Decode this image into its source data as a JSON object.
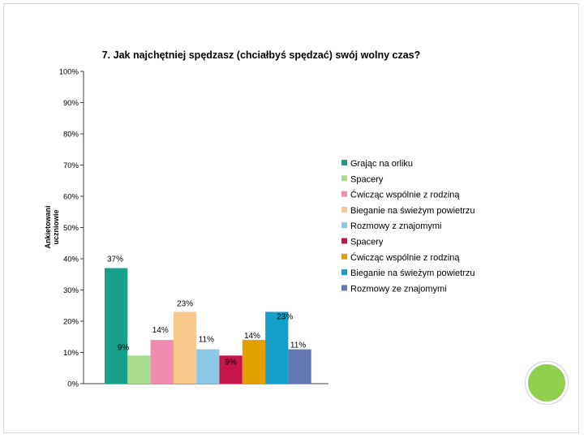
{
  "chart_data": {
    "type": "bar",
    "title": "7. Jak najchętniej spędzasz (chciałbyś spędzać) swój wolny czas?",
    "ylabel": "Ankietowani uczniowie",
    "ylim": [
      0,
      100
    ],
    "yticks": [
      "0%",
      "10%",
      "20%",
      "30%",
      "40%",
      "50%",
      "60%",
      "70%",
      "80%",
      "90%",
      "100%"
    ],
    "grid": false,
    "legend_position": "right",
    "series": [
      {
        "name": "Grając na orliku",
        "value": 37,
        "label": "37%",
        "color": "#17a08c"
      },
      {
        "name": "Spacery",
        "value": 9,
        "label": "9%",
        "color": "#a8dc8c"
      },
      {
        "name": "Ćwicząc wspólnie z rodziną",
        "value": 14,
        "label": "14%",
        "color": "#f08cb0"
      },
      {
        "name": "Bieganie na świeżym powietrzu",
        "value": 23,
        "label": "23%",
        "color": "#f8c88c"
      },
      {
        "name": "Rozmowy z znajomymi",
        "value": 11,
        "label": "11%",
        "color": "#8cc8e8"
      },
      {
        "name": "Spacery",
        "value": 9,
        "label": "9%",
        "color": "#c8144c"
      },
      {
        "name": "Ćwicząc wspólnie z rodziną",
        "value": 14,
        "label": "14%",
        "color": "#e0a000"
      },
      {
        "name": "Bieganie na świeżym powietrzu",
        "value": 23,
        "label": "23%",
        "color": "#14a0c8"
      },
      {
        "name": "Rozmowy ze znajomymi",
        "value": 11,
        "label": "11%",
        "color": "#6478b4"
      }
    ]
  }
}
